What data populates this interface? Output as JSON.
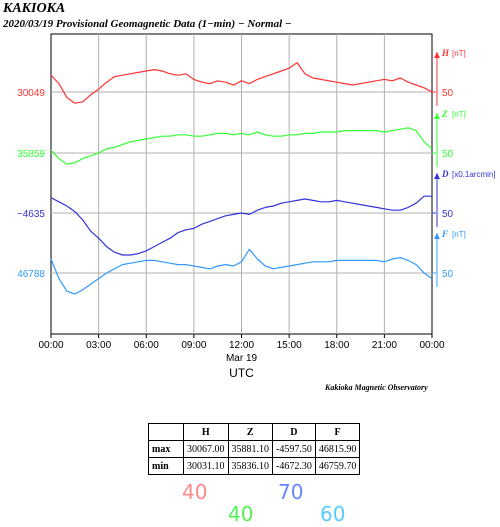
{
  "header": {
    "site": "KAKIOKA",
    "subtitle": "2020/03/19  Provisional Geomagnetic Data (1−min)  − Normal −"
  },
  "footer": {
    "observatory": "Kakioka Magnetic Observatory"
  },
  "chart_data": {
    "type": "line",
    "x_ticks": [
      "00:00",
      "03:00",
      "06:00",
      "09:00",
      "12:00",
      "15:00",
      "18:00",
      "21:00",
      "00:00"
    ],
    "x_sublabel": "Mar 19",
    "xlabel": "UTC",
    "x_hours": [
      0,
      0.5,
      1,
      1.5,
      2,
      2.5,
      3,
      3.5,
      4,
      4.5,
      5,
      5.5,
      6,
      6.5,
      7,
      7.5,
      8,
      8.5,
      9,
      9.5,
      10,
      10.5,
      11,
      11.5,
      12,
      12.5,
      13,
      13.5,
      14,
      14.5,
      15,
      15.5,
      16,
      16.5,
      17,
      17.5,
      18,
      18.5,
      19,
      19.5,
      20,
      20.5,
      21,
      21.5,
      22,
      22.5,
      23,
      23.5,
      24
    ],
    "y_offset_min": -20,
    "y_offset_max": 20,
    "series": [
      {
        "name": "H",
        "unit": "[nT]",
        "baseline": "30049",
        "scale": "50",
        "color": "#ff3333",
        "values": [
          12,
          6,
          -4,
          -8,
          -7,
          -2,
          2,
          7,
          11,
          12,
          13,
          14,
          15,
          16,
          15,
          13,
          12,
          13,
          9,
          7,
          6,
          8,
          7,
          5,
          8,
          6,
          9,
          11,
          13,
          15,
          17,
          21,
          13,
          10,
          9,
          8,
          7,
          6,
          5,
          6,
          7,
          8,
          9,
          8,
          10,
          7,
          5,
          3,
          0
        ]
      },
      {
        "name": "Z",
        "unit": "[nT]",
        "baseline": "35859",
        "scale": "50",
        "color": "#33ff33",
        "values": [
          2,
          -4,
          -8,
          -7,
          -4,
          -2,
          0,
          3,
          4,
          6,
          8,
          9,
          10,
          11,
          12,
          12,
          13,
          13,
          12,
          12,
          13,
          14,
          14,
          13,
          14,
          13,
          15,
          13,
          12,
          12,
          13,
          13,
          14,
          14,
          15,
          15,
          15,
          16,
          16,
          16,
          16,
          16,
          15,
          16,
          17,
          18,
          16,
          8,
          3
        ]
      },
      {
        "name": "D",
        "unit": "[x0.1arcmin]",
        "baseline": "−4635",
        "scale": "50",
        "color": "#3333dd",
        "values": [
          11,
          8,
          5,
          1,
          -5,
          -13,
          -18,
          -24,
          -28,
          -30,
          -30,
          -29,
          -27,
          -24,
          -21,
          -18,
          -14,
          -12,
          -11,
          -8,
          -6,
          -4,
          -2,
          -1,
          0,
          -1,
          2,
          4,
          5,
          7,
          8,
          9,
          10,
          9,
          8,
          8,
          9,
          8,
          7,
          6,
          5,
          4,
          3,
          2,
          2,
          4,
          7,
          12,
          12
        ]
      },
      {
        "name": "F",
        "unit": "[nT]",
        "baseline": "46788",
        "scale": "50",
        "color": "#3399ff",
        "values": [
          10,
          -4,
          -13,
          -15,
          -12,
          -8,
          -4,
          0,
          3,
          6,
          7,
          8,
          9,
          9,
          8,
          7,
          6,
          6,
          5,
          4,
          3,
          5,
          6,
          5,
          8,
          17,
          10,
          5,
          3,
          4,
          5,
          6,
          7,
          8,
          8,
          8,
          9,
          9,
          9,
          9,
          9,
          9,
          8,
          10,
          11,
          9,
          6,
          0,
          -4
        ]
      }
    ]
  },
  "stats_table": {
    "columns": [
      "",
      "H",
      "Z",
      "D",
      "F"
    ],
    "rows": [
      {
        "label": "max",
        "values": [
          "30067.00",
          "35881.10",
          "-4597.50",
          "46815.90"
        ]
      },
      {
        "label": "min",
        "values": [
          "30031.10",
          "35836.10",
          "-4672.30",
          "46759.70"
        ]
      }
    ]
  },
  "scale_notes": [
    {
      "text": "40",
      "color": "#ff8888"
    },
    {
      "text": "70",
      "color": "#6688ff"
    },
    {
      "text": "40",
      "color": "#55ee55"
    },
    {
      "text": "60",
      "color": "#55ccff"
    }
  ]
}
